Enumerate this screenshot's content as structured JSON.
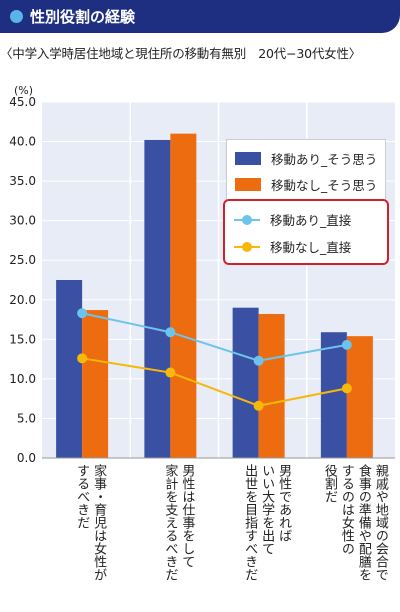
{
  "header": {
    "title": "性別役割の経験"
  },
  "subtitle": "〈中学入学時居住地域と現住所の移動有無別　20代−30代女性〉",
  "unit": "(%)",
  "colors": {
    "header_bg": "#1e2f82",
    "plot_bg": "#e8ecf7",
    "bar_move_yes": "#3a50a2",
    "bar_move_no": "#ed6c0f",
    "line_move_yes": "#6cc3ec",
    "line_move_no": "#f6b80a",
    "legend_highlight": "#d2202a"
  },
  "chart_data": {
    "type": "bar",
    "ylim": [
      0,
      45
    ],
    "yticks": [
      "0.0",
      "5.0",
      "10.0",
      "15.0",
      "20.0",
      "25.0",
      "30.0",
      "35.0",
      "40.0",
      "45.0"
    ],
    "categories": [
      "家事・育児は女性が\nするべきだ",
      "男性は仕事をして\n家計を支えるべきだ",
      "男性であれば\nいい大学を出て\n出世を目指すべきだ",
      "親戚や地域の会合で\n食事の準備や配膳を\nするのは女性の\n役割だ"
    ],
    "series": [
      {
        "name": "移動あり_そう思う",
        "kind": "bar",
        "values": [
          22.5,
          40.2,
          19.0,
          15.9
        ]
      },
      {
        "name": "移動なし_そう思う",
        "kind": "bar",
        "values": [
          18.7,
          41.0,
          18.2,
          15.4
        ]
      },
      {
        "name": "移動あり_直接",
        "kind": "line",
        "values": [
          18.3,
          15.9,
          12.3,
          14.3
        ]
      },
      {
        "name": "移動なし_直接",
        "kind": "line",
        "values": [
          12.6,
          10.8,
          6.6,
          8.8
        ]
      }
    ]
  }
}
